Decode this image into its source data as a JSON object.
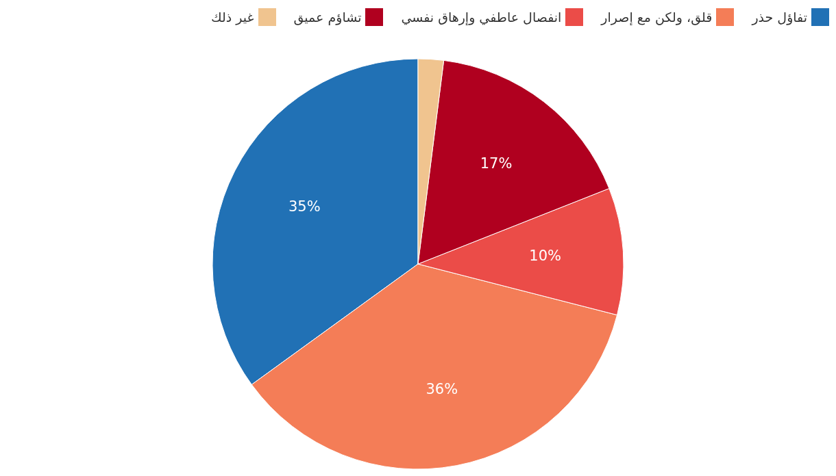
{
  "chart_data": {
    "type": "pie",
    "categories": [
      "تفاؤل حذر",
      "قلق، ولكن مع إصرار",
      "انفصال عاطفي وإرهاق نفسي",
      "تشاؤم عميق",
      "غير ذلك"
    ],
    "values": [
      35,
      36,
      10,
      17,
      2
    ],
    "colors": [
      "#2171b5",
      "#f47d57",
      "#eb4c48",
      "#b0001f",
      "#f0c48f"
    ],
    "value_labels": [
      "35%",
      "36%",
      "10%",
      "17%",
      null
    ],
    "legend": "top right"
  }
}
